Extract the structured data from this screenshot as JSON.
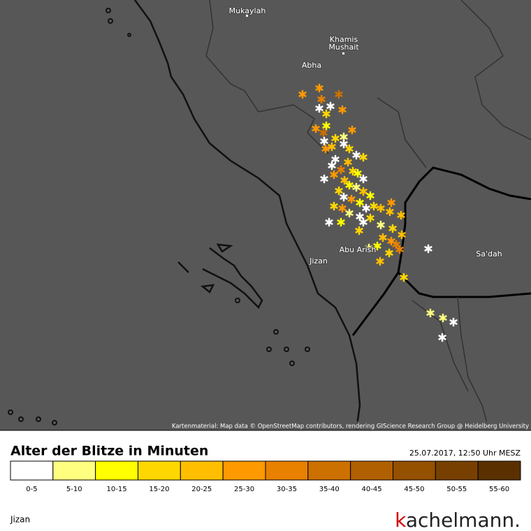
{
  "map": {
    "places": [
      "Mukaylah",
      "Khamis",
      "Mushait",
      "Abha",
      "Abu Arish",
      "Jizan",
      "Sa'dah"
    ],
    "attribution": "Kartenmaterial: Map data © OpenStreetMap contributors, rendering GIScience Research Group @ Heidelberg University"
  },
  "legend": {
    "title": "Alter der Blitze in Minuten",
    "timestamp": "25.07.2017, 12:50 Uhr MESZ",
    "items": [
      {
        "label": "0-5",
        "color": "#ffffff"
      },
      {
        "label": "5-10",
        "color": "#ffff80"
      },
      {
        "label": "10-15",
        "color": "#ffff00"
      },
      {
        "label": "15-20",
        "color": "#ffd700"
      },
      {
        "label": "20-25",
        "color": "#ffbf00"
      },
      {
        "label": "25-30",
        "color": "#ff9900"
      },
      {
        "label": "30-35",
        "color": "#e88000"
      },
      {
        "label": "35-40",
        "color": "#cc7000"
      },
      {
        "label": "40-45",
        "color": "#b06000"
      },
      {
        "label": "45-50",
        "color": "#955000"
      },
      {
        "label": "50-55",
        "color": "#784000"
      },
      {
        "label": "55-60",
        "color": "#5a3000"
      }
    ]
  },
  "footer": {
    "location": "Jizan",
    "brand": {
      "initial": "k",
      "rest": "achelmann."
    }
  }
}
